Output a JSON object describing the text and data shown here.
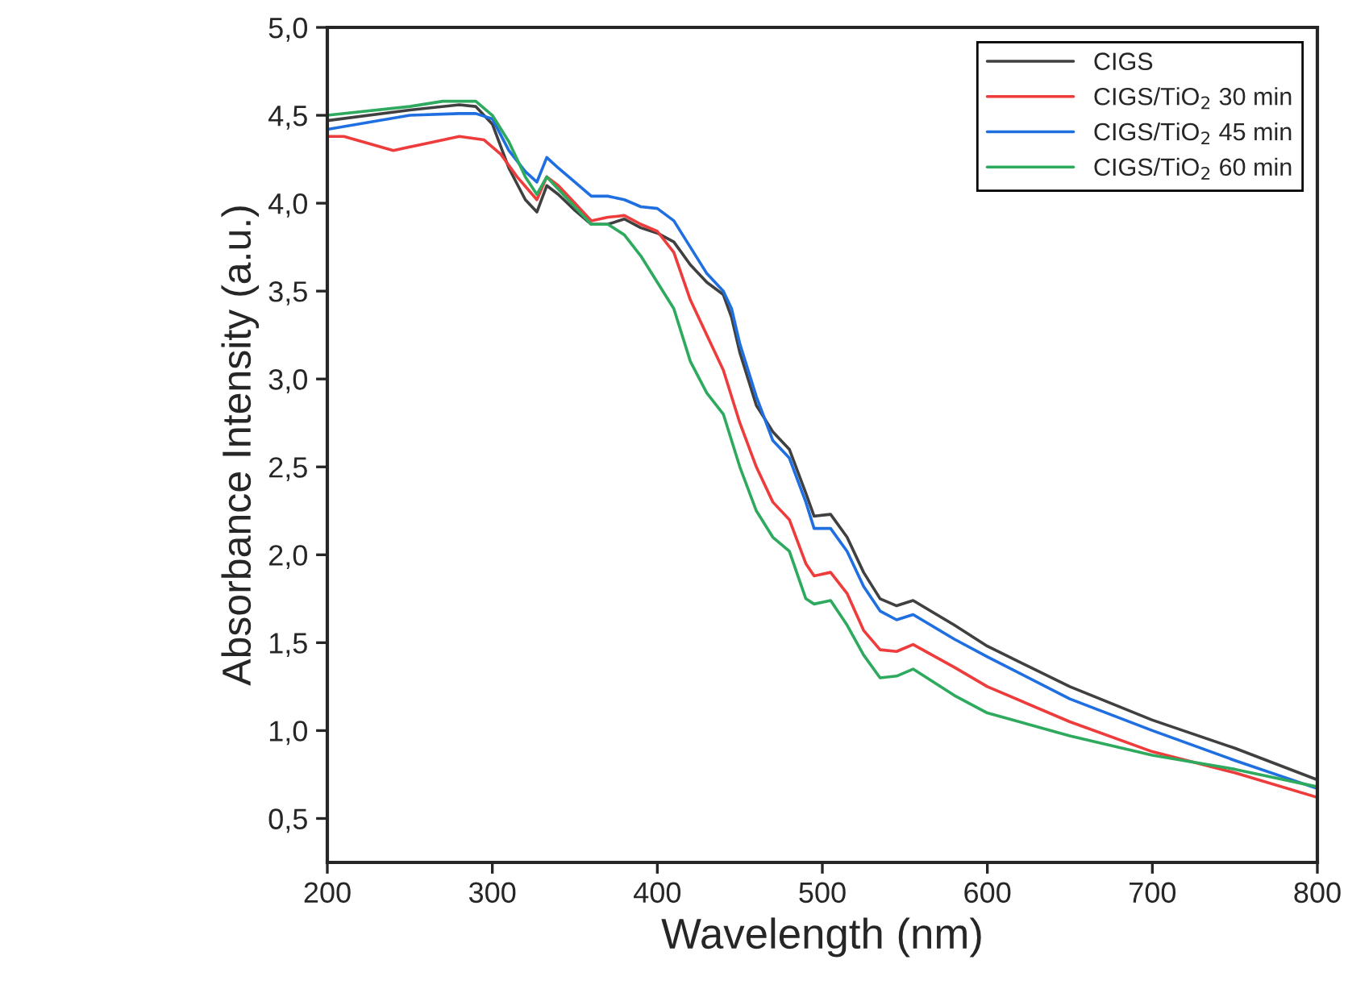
{
  "chart_data": {
    "type": "line",
    "xlabel": "Wavelength (nm)",
    "ylabel": "Absorbance Intensity (a.u.)",
    "xlim": [
      200,
      800
    ],
    "xticks": [
      200,
      300,
      400,
      500,
      600,
      700,
      800
    ],
    "ylim": [
      0.25,
      5.0
    ],
    "yticks": [
      {
        "value": 0.5,
        "label": "0,5"
      },
      {
        "value": 1.0,
        "label": "1,0"
      },
      {
        "value": 1.5,
        "label": "1,5"
      },
      {
        "value": 2.0,
        "label": "2,0"
      },
      {
        "value": 2.5,
        "label": "2,5"
      },
      {
        "value": 3.0,
        "label": "3,0"
      },
      {
        "value": 3.5,
        "label": "3,5"
      },
      {
        "value": 4.0,
        "label": "4,0"
      },
      {
        "value": 4.5,
        "label": "4,5"
      },
      {
        "value": 5.0,
        "label": "5,0"
      }
    ],
    "grid": false,
    "legend": "top right",
    "marker": "none",
    "line_style": "solid",
    "x": [
      200,
      250,
      280,
      290,
      300,
      310,
      320,
      327,
      333,
      340,
      350,
      360,
      370,
      380,
      390,
      400,
      410,
      420,
      430,
      440,
      445,
      450,
      460,
      470,
      480,
      490,
      495,
      505,
      515,
      525,
      535,
      545,
      555,
      580,
      600,
      650,
      700,
      750,
      800
    ],
    "series": [
      {
        "name": "CIGS",
        "color": "#404040",
        "values": [
          4.47,
          4.53,
          4.56,
          4.55,
          4.45,
          4.2,
          4.02,
          3.95,
          4.1,
          4.05,
          3.96,
          3.88,
          3.88,
          3.91,
          3.86,
          3.83,
          3.78,
          3.65,
          3.55,
          3.48,
          3.35,
          3.15,
          2.85,
          2.7,
          2.6,
          2.35,
          2.22,
          2.23,
          2.1,
          1.9,
          1.75,
          1.71,
          1.74,
          1.6,
          1.48,
          1.25,
          1.06,
          0.9,
          0.72
        ]
      },
      {
        "name": "CIGS/TiO$_{2}$ 30 min",
        "color": "#ee3b3b",
        "x": [
          200,
          210,
          240,
          260,
          280,
          295,
          305,
          315,
          327,
          333,
          340,
          350,
          360,
          370,
          380,
          390,
          400,
          410,
          420,
          430,
          440,
          450,
          460,
          470,
          480,
          490,
          495,
          505,
          515,
          525,
          535,
          545,
          555,
          580,
          600,
          650,
          700,
          750,
          800
        ],
        "values": [
          4.38,
          4.38,
          4.3,
          4.34,
          4.38,
          4.36,
          4.28,
          4.15,
          4.02,
          4.15,
          4.1,
          4.0,
          3.9,
          3.92,
          3.93,
          3.88,
          3.84,
          3.72,
          3.45,
          3.25,
          3.05,
          2.75,
          2.5,
          2.3,
          2.2,
          1.95,
          1.88,
          1.9,
          1.78,
          1.57,
          1.46,
          1.45,
          1.49,
          1.36,
          1.25,
          1.05,
          0.88,
          0.76,
          0.62
        ]
      },
      {
        "name": "CIGS/TiO$_{2}$ 45 min",
        "color": "#1f6fe0",
        "values": [
          4.42,
          4.5,
          4.51,
          4.51,
          4.48,
          4.3,
          4.18,
          4.12,
          4.26,
          4.2,
          4.12,
          4.04,
          4.04,
          4.02,
          3.98,
          3.97,
          3.9,
          3.75,
          3.6,
          3.5,
          3.4,
          3.2,
          2.9,
          2.65,
          2.55,
          2.3,
          2.15,
          2.15,
          2.02,
          1.82,
          1.68,
          1.63,
          1.66,
          1.52,
          1.42,
          1.18,
          1.0,
          0.83,
          0.67
        ]
      },
      {
        "name": "CIGS/TiO$_{2}$ 60 min",
        "color": "#2eaa5e",
        "x": [
          200,
          250,
          270,
          280,
          290,
          300,
          310,
          320,
          327,
          333,
          340,
          350,
          360,
          370,
          380,
          390,
          400,
          410,
          420,
          430,
          440,
          450,
          460,
          470,
          480,
          490,
          495,
          505,
          515,
          525,
          535,
          545,
          555,
          580,
          600,
          650,
          700,
          750,
          800
        ],
        "values": [
          4.5,
          4.55,
          4.58,
          4.58,
          4.58,
          4.5,
          4.35,
          4.15,
          4.05,
          4.15,
          4.08,
          3.98,
          3.88,
          3.88,
          3.82,
          3.7,
          3.55,
          3.4,
          3.1,
          2.92,
          2.8,
          2.5,
          2.25,
          2.1,
          2.02,
          1.75,
          1.72,
          1.74,
          1.6,
          1.43,
          1.3,
          1.31,
          1.35,
          1.2,
          1.1,
          0.97,
          0.86,
          0.78,
          0.68
        ]
      }
    ]
  }
}
